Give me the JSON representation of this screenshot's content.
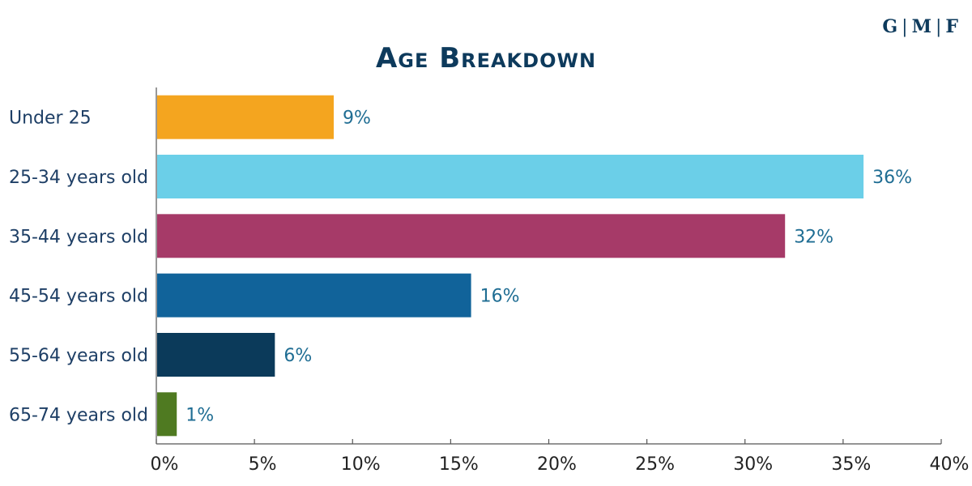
{
  "logo": {
    "g": "G",
    "m": "M",
    "f": "F",
    "color": "#0d3a5c"
  },
  "chart_data": {
    "type": "bar",
    "orientation": "horizontal",
    "title": "Age Breakdown",
    "categories": [
      "Under 25",
      "25-34 years old",
      "35-44 years old",
      "45-54 years old",
      "55-64 years old",
      "65-74 years old"
    ],
    "values": [
      9,
      36,
      32,
      16,
      6,
      1
    ],
    "value_labels": [
      "9%",
      "36%",
      "32%",
      "16%",
      "6%",
      "1%"
    ],
    "colors": [
      "#f4a51f",
      "#6bcfe8",
      "#a63a68",
      "#11639a",
      "#0b3a5a",
      "#4f7a21"
    ],
    "xlim": [
      0,
      40
    ],
    "xticks": [
      0,
      5,
      10,
      15,
      20,
      25,
      30,
      35,
      40
    ],
    "xtick_labels": [
      "0%",
      "5%",
      "10%",
      "15%",
      "20%",
      "25%",
      "30%",
      "35%",
      "40%"
    ],
    "grid": false,
    "legend": "none"
  }
}
